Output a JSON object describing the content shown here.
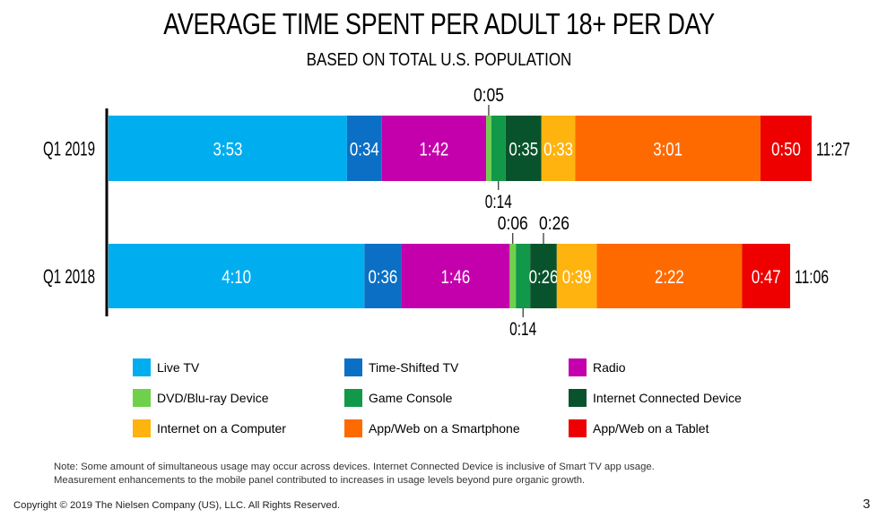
{
  "chart_data": {
    "type": "bar",
    "orientation": "horizontal-stacked",
    "title": "AVERAGE TIME SPENT PER ADULT 18+ PER DAY",
    "subtitle": "BASED ON TOTAL U.S. POPULATION",
    "categories": [
      "Q1 2019",
      "Q1 2018"
    ],
    "series": [
      {
        "name": "Live TV",
        "color": "#00aeef",
        "values": [
          233,
          250
        ],
        "labels": [
          "3:53",
          "4:10"
        ]
      },
      {
        "name": "Time-Shifted TV",
        "color": "#0b6fc5",
        "values": [
          34,
          36
        ],
        "labels": [
          "0:34",
          "0:36"
        ]
      },
      {
        "name": "Radio",
        "color": "#c400ac",
        "values": [
          102,
          106
        ],
        "labels": [
          "1:42",
          "1:46"
        ]
      },
      {
        "name": "DVD/Blu-ray Device",
        "color": "#6fd14b",
        "values": [
          5,
          6
        ],
        "labels": [
          "0:05",
          "0:06"
        ]
      },
      {
        "name": "Game Console",
        "color": "#119848",
        "values": [
          14,
          14
        ],
        "labels": [
          "0:14",
          "0:14"
        ]
      },
      {
        "name": "Internet Connected Device",
        "color": "#08532c",
        "values": [
          35,
          26
        ],
        "labels": [
          "0:35",
          "0:26"
        ]
      },
      {
        "name": "Internet on a Computer",
        "color": "#ffb30f",
        "values": [
          33,
          39
        ],
        "labels": [
          "0:33",
          "0:39"
        ]
      },
      {
        "name": "App/Web on a Smartphone",
        "color": "#ff6a00",
        "values": [
          181,
          142
        ],
        "labels": [
          "3:01",
          "2:22"
        ]
      },
      {
        "name": "App/Web on a Tablet",
        "color": "#ee0000",
        "values": [
          50,
          47
        ],
        "labels": [
          "0:50",
          "0:47"
        ]
      }
    ],
    "totals": [
      "11:27",
      "11:06"
    ],
    "xlabel": "",
    "ylabel": "",
    "units": "minutes",
    "legend_position": "bottom"
  },
  "note": "Note: Some amount of simultaneous usage may occur across devices. Internet Connected Device is inclusive of Smart TV app usage.",
  "note2": "Measurement enhancements to the mobile panel contributed to increases in usage levels beyond pure organic growth.",
  "copyright": "Copyright © 2019 The Nielsen Company (US), LLC. All Rights Reserved.",
  "page_number": "3"
}
